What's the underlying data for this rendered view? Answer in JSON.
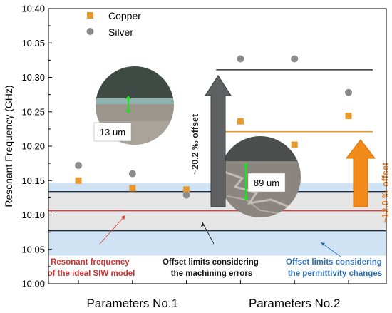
{
  "chart_data": {
    "type": "scatter",
    "ylabel": "Resonant Frequency (GHz)",
    "ylim": [
      10.0,
      10.4
    ],
    "yticks": [
      "10.00",
      "10.05",
      "10.10",
      "10.15",
      "10.20",
      "10.25",
      "10.30",
      "10.35",
      "10.40"
    ],
    "ytick_values": [
      10.0,
      10.05,
      10.1,
      10.15,
      10.2,
      10.25,
      10.3,
      10.35,
      10.4
    ],
    "categories": [
      "Parameters No.1",
      "Parameters No.2"
    ],
    "xlim": [
      0,
      6
    ],
    "legend_position": "top-left",
    "series": [
      {
        "name": "Copper",
        "marker": "square",
        "color": "#e69a2e",
        "x": [
          1,
          2,
          3,
          4,
          5,
          6
        ],
        "y": [
          10.15,
          10.139,
          10.137,
          10.236,
          10.202,
          10.244
        ]
      },
      {
        "name": "Silver",
        "marker": "circle",
        "color": "#8c8c8c",
        "x": [
          1,
          2,
          3,
          4,
          5,
          6
        ],
        "y": [
          10.172,
          10.16,
          10.129,
          10.327,
          10.327,
          10.278
        ]
      }
    ],
    "bands": [
      {
        "name": "permittivity-band",
        "y0": 10.041,
        "y1": 10.147,
        "color": "#cfe3f5"
      },
      {
        "name": "machining-band",
        "y0": 10.077,
        "y1": 10.134,
        "color": "#e6e6e6"
      }
    ],
    "hlines": [
      {
        "name": "ideal-line",
        "y": 10.106,
        "color": "#e53935"
      },
      {
        "name": "machining-upper-line",
        "y": 10.134,
        "color": "#1f2f45"
      },
      {
        "name": "machining-lower-line",
        "y": 10.077,
        "color": "#1f2f45"
      }
    ],
    "offset_lines": [
      {
        "name": "silver-offset-line",
        "y": 10.311,
        "from_x": 3.55,
        "to_x": 6.45,
        "color": "#333333"
      },
      {
        "name": "copper-offset-line",
        "y": 10.221,
        "from_x": 3.55,
        "to_x": 6.45,
        "color": "#e69a2e"
      }
    ],
    "annotations": {
      "ideal": {
        "line1": "Resonant frequency",
        "line2": "of the ideal SIW model",
        "color": "#d32f2f"
      },
      "machining": {
        "line1": "Offset limits considering",
        "line2": "the machining errors",
        "color": "#111111"
      },
      "permittivity": {
        "line1": "Offset limits considering",
        "line2": "the permittivity changes",
        "color": "#2b6fb3"
      },
      "silver_offset": {
        "text": "~20.2 ‰ offset",
        "color": "#222222"
      },
      "copper_offset": {
        "text": "~12.0 ‰ offset",
        "color": "#e67e22"
      }
    },
    "insets": [
      {
        "label": "13 um"
      },
      {
        "label": "89 um"
      }
    ]
  }
}
